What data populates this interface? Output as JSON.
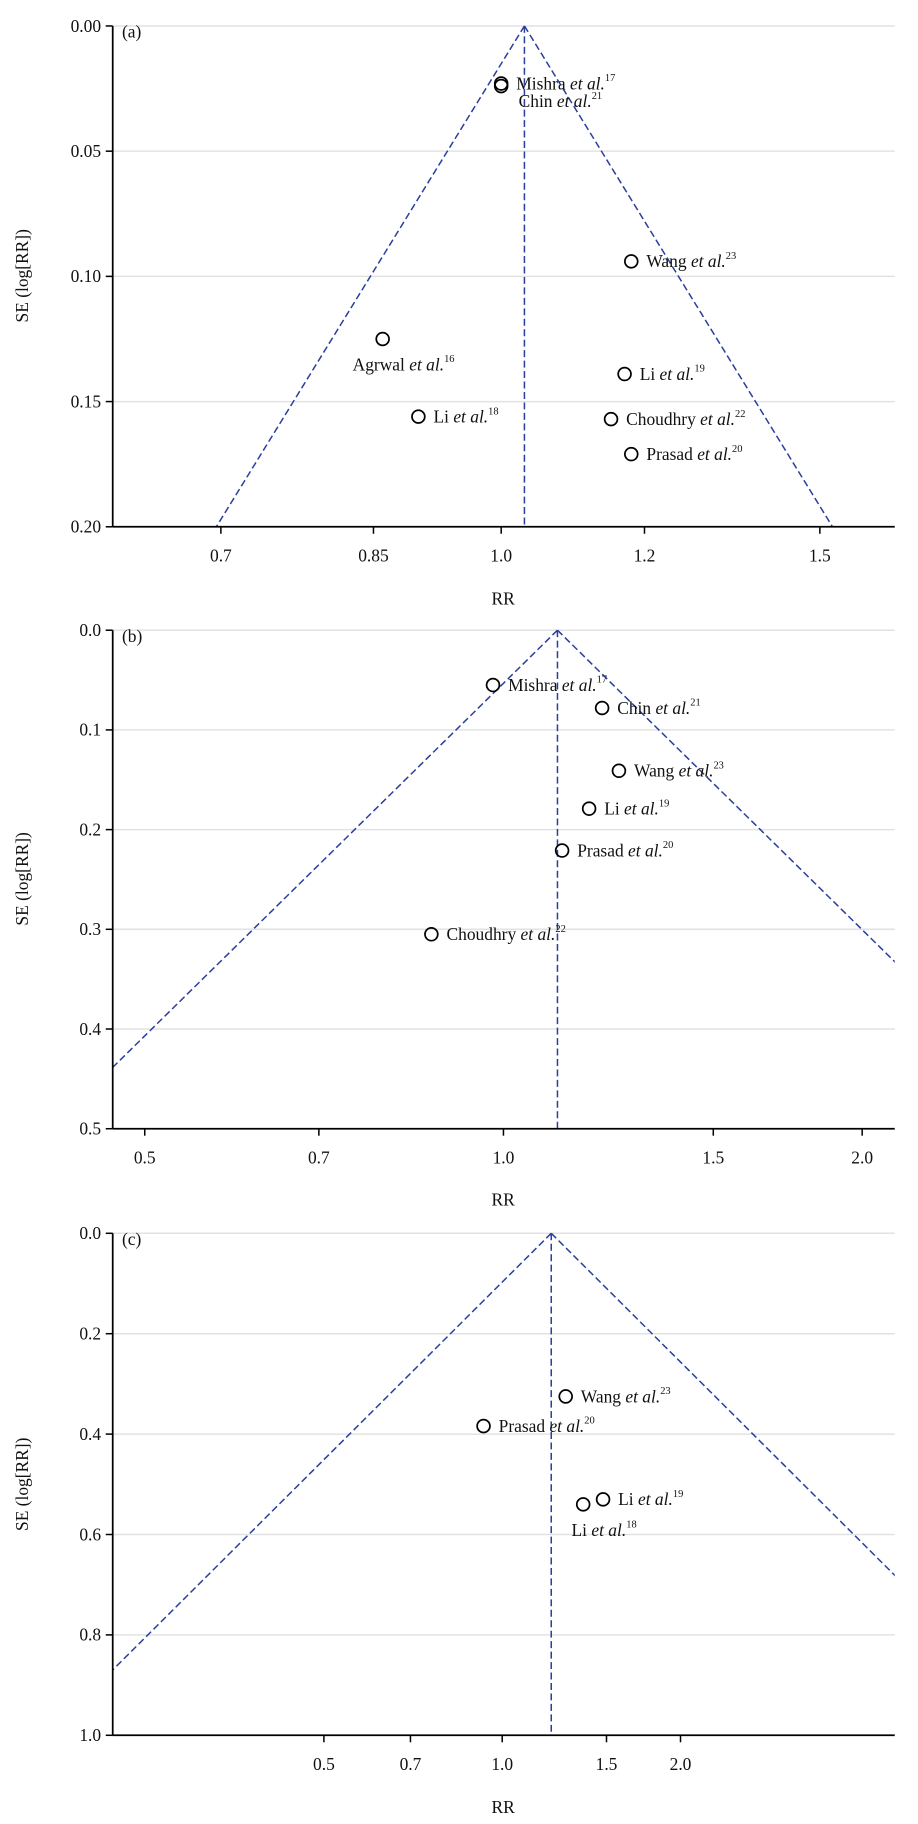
{
  "colors": {
    "funnel": "#2b3f9e",
    "grid": "#e2e2e2",
    "axis": "#000000",
    "marker": "#000000"
  },
  "et_al": "et al.",
  "chart_data": [
    {
      "type": "scatter",
      "panel": "(a)",
      "xlabel": "RR",
      "ylabel": "SE (log[RR])",
      "x_scale": "log",
      "y_reversed": true,
      "xlim": [
        0.61,
        1.65
      ],
      "ylim": [
        0,
        0.2
      ],
      "xticks": [
        "0.7",
        "0.85",
        "1.0",
        "1.2",
        "1.5"
      ],
      "yticks": [
        "0.00",
        "0.05",
        "0.10",
        "0.15",
        "0.20"
      ],
      "grid": "horizontal",
      "pooled_rr": 1.03,
      "funnel": "95% pseudo-confidence limits",
      "points": [
        {
          "author": "Mishra",
          "ref": "17",
          "rr": 1.0,
          "se": 0.023,
          "label_position": "right"
        },
        {
          "author": "Chin",
          "ref": "21",
          "rr": 1.0,
          "se": 0.024,
          "label_position": "below-right"
        },
        {
          "author": "Wang",
          "ref": "23",
          "rr": 1.18,
          "se": 0.094,
          "label_position": "right"
        },
        {
          "author": "Agrwal",
          "ref": "16",
          "rr": 0.86,
          "se": 0.125,
          "label_position": "below"
        },
        {
          "author": "Li",
          "ref": "19",
          "rr": 1.17,
          "se": 0.139,
          "label_position": "right"
        },
        {
          "author": "Li",
          "ref": "18",
          "rr": 0.9,
          "se": 0.156,
          "label_position": "right"
        },
        {
          "author": "Choudhry",
          "ref": "22",
          "rr": 1.15,
          "se": 0.157,
          "label_position": "right"
        },
        {
          "author": "Prasad",
          "ref": "20",
          "rr": 1.18,
          "se": 0.171,
          "label_position": "right"
        }
      ]
    },
    {
      "type": "scatter",
      "panel": "(b)",
      "xlabel": "RR",
      "ylabel": "SE (log[RR])",
      "x_scale": "log",
      "y_reversed": true,
      "xlim": [
        0.47,
        2.13
      ],
      "ylim": [
        0,
        0.5
      ],
      "xticks": [
        "0.5",
        "0.7",
        "1.0",
        "1.5",
        "2.0"
      ],
      "yticks": [
        "0.0",
        "0.1",
        "0.2",
        "0.3",
        "0.4",
        "0.5"
      ],
      "grid": "horizontal",
      "pooled_rr": 1.11,
      "points": [
        {
          "author": "Mishra",
          "ref": "17",
          "rr": 0.98,
          "se": 0.055,
          "label_position": "right"
        },
        {
          "author": "Chin",
          "ref": "21",
          "rr": 1.21,
          "se": 0.078,
          "label_position": "right"
        },
        {
          "author": "Wang",
          "ref": "23",
          "rr": 1.25,
          "se": 0.141,
          "label_position": "right"
        },
        {
          "author": "Li",
          "ref": "19",
          "rr": 1.18,
          "se": 0.179,
          "label_position": "right"
        },
        {
          "author": "Prasad",
          "ref": "20",
          "rr": 1.12,
          "se": 0.221,
          "label_position": "right"
        },
        {
          "author": "Choudhry",
          "ref": "22",
          "rr": 0.87,
          "se": 0.305,
          "label_position": "right"
        }
      ]
    },
    {
      "type": "scatter",
      "panel": "(c)",
      "xlabel": "RR",
      "ylabel": "SE (log[RR])",
      "x_scale": "log",
      "y_reversed": true,
      "xlim": [
        0.22,
        4.6
      ],
      "ylim": [
        0,
        1.0
      ],
      "xticks": [
        "0.5",
        "0.7",
        "1.0",
        "1.5",
        "2.0"
      ],
      "yticks": [
        "0.0",
        "0.2",
        "0.4",
        "0.6",
        "0.8",
        "1.0"
      ],
      "grid": "horizontal",
      "pooled_rr": 1.21,
      "points": [
        {
          "author": "Wang",
          "ref": "23",
          "rr": 1.28,
          "se": 0.325,
          "label_position": "right"
        },
        {
          "author": "Prasad",
          "ref": "20",
          "rr": 0.93,
          "se": 0.384,
          "label_position": "right"
        },
        {
          "author": "Li",
          "ref": "19",
          "rr": 1.48,
          "se": 0.53,
          "label_position": "right"
        },
        {
          "author": "Li",
          "ref": "18",
          "rr": 1.37,
          "se": 0.54,
          "label_position": "below"
        }
      ]
    }
  ]
}
